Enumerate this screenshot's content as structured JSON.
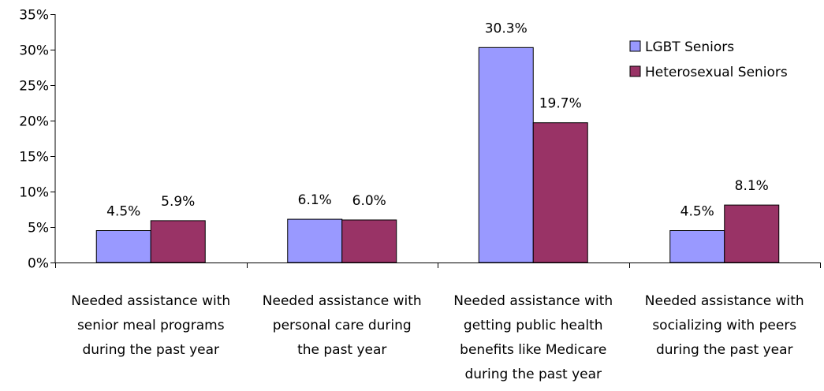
{
  "chart_data": {
    "type": "bar",
    "categories": [
      [
        "Needed assistance with",
        "senior meal programs",
        "during the past year"
      ],
      [
        "Needed assistance with",
        "personal care during",
        "the past year"
      ],
      [
        "Needed assistance with",
        "getting public health",
        "benefits like Medicare",
        "during the past year"
      ],
      [
        "Needed assistance with",
        "socializing with peers",
        "during the past year"
      ]
    ],
    "series": [
      {
        "name": "LGBT Seniors",
        "color": "#9999ff",
        "values": [
          4.5,
          6.1,
          30.3,
          4.5
        ],
        "labels": [
          "4.5%",
          "6.1%",
          "30.3%",
          "4.5%"
        ]
      },
      {
        "name": "Heterosexual Seniors",
        "color": "#993366",
        "values": [
          5.9,
          6.0,
          19.7,
          8.1
        ],
        "labels": [
          "5.9%",
          "6.0%",
          "19.7%",
          "8.1%"
        ]
      }
    ],
    "y_ticks": [
      "0%",
      "5%",
      "10%",
      "15%",
      "20%",
      "25%",
      "30%",
      "35%"
    ],
    "ylim": [
      0,
      35
    ],
    "legend_position": "top-right",
    "grid": false
  }
}
